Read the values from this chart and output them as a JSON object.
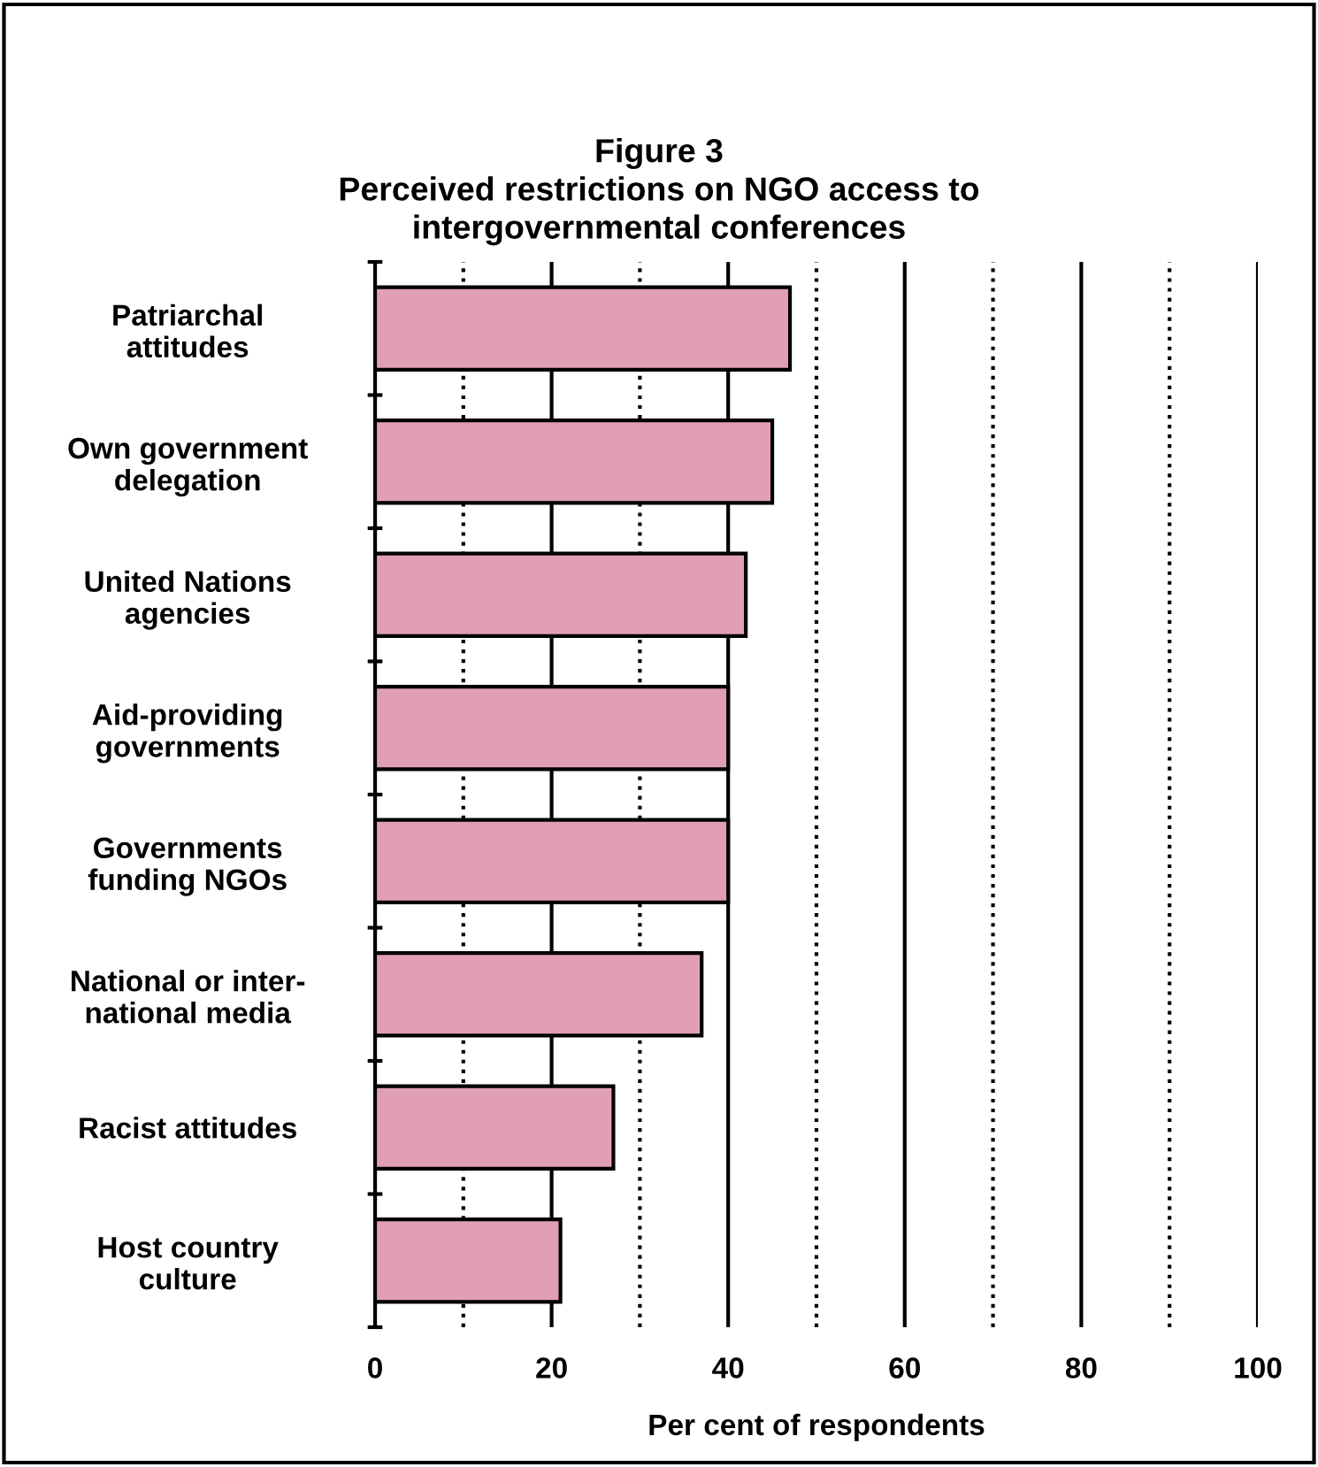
{
  "chart_data": {
    "type": "bar",
    "orientation": "horizontal",
    "title": "Figure 3\nPerceived restrictions on NGO access to\nintergovernmental conferences",
    "xlabel": "Per cent of respondents",
    "categories": [
      "Patriarchal\nattitudes",
      "Own government\ndelegation",
      "United Nations\nagencies",
      "Aid-providing\ngovernments",
      "Governments\nfunding NGOs",
      "National or inter-\nnational media",
      "Racist attitudes",
      "Host country\nculture"
    ],
    "values": [
      47,
      45,
      42,
      40,
      40,
      37,
      27,
      21
    ],
    "color": "#e09fb7",
    "xlim": [
      0,
      100
    ],
    "xticks": [
      0,
      {
        "value": 10,
        "label": null
      },
      20,
      {
        "value": 30,
        "label": null
      },
      40,
      {
        "value": 50,
        "label": null
      },
      60,
      {
        "value": 70,
        "label": null
      },
      80,
      {
        "value": 90,
        "label": null
      },
      100
    ],
    "grid": "x"
  }
}
